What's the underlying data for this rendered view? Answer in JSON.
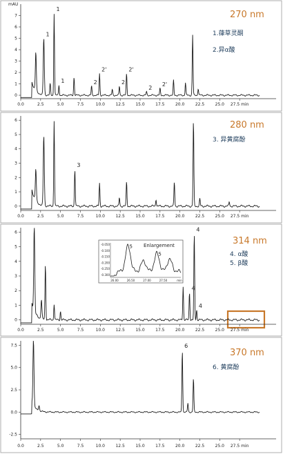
{
  "colors": {
    "trace": "#1a1a1a",
    "wavelength": "#c8782a",
    "legend": "#23415f",
    "highlight_box": "#c8782a"
  },
  "chart_data": [
    {
      "type": "line",
      "unit_label": "mAU",
      "wavelength": "270 nm",
      "legend": [
        "1.葎草灵酮",
        "2.异α酸"
      ],
      "x_ticks": [
        "0.0",
        "2.5",
        "5.0",
        "7.5",
        "10.0",
        "12.5",
        "15.0",
        "17.5",
        "20.0",
        "22.5",
        "25.0",
        "27.5 min"
      ],
      "y_ticks": [
        "0",
        "1",
        "2",
        "3",
        "4",
        "5",
        "6",
        "7"
      ],
      "xlim": [
        0,
        30
      ],
      "ylim": [
        -0.3,
        8
      ],
      "peaks": [
        {
          "x": 1.9,
          "y": 3.4
        },
        {
          "x": 2.9,
          "y": 5.0,
          "label": "1"
        },
        {
          "x": 3.7,
          "y": 1.0
        },
        {
          "x": 4.2,
          "y": 7.2,
          "label": "1"
        },
        {
          "x": 4.8,
          "y": 0.9,
          "label": "1"
        },
        {
          "x": 6.7,
          "y": 1.6
        },
        {
          "x": 8.9,
          "y": 0.8,
          "label": "2"
        },
        {
          "x": 9.9,
          "y": 1.9,
          "label": "2'"
        },
        {
          "x": 11.5,
          "y": 0.5
        },
        {
          "x": 12.4,
          "y": 0.8,
          "label": "2"
        },
        {
          "x": 13.3,
          "y": 1.9,
          "label": "2'"
        },
        {
          "x": 15.8,
          "y": 0.3,
          "label": "2"
        },
        {
          "x": 17.5,
          "y": 0.6,
          "label": "2'"
        },
        {
          "x": 19.2,
          "y": 1.3
        },
        {
          "x": 20.7,
          "y": 1.1
        },
        {
          "x": 21.6,
          "y": 5.3
        },
        {
          "x": 22.3,
          "y": 0.6
        }
      ]
    },
    {
      "type": "line",
      "wavelength": "280 nm",
      "legend": [
        "3. 异黄腐酚"
      ],
      "x_ticks": [
        "0.0",
        "2.5",
        "5.0",
        "7.5",
        "10.0",
        "12.5",
        "15.0",
        "17.5",
        "20.0",
        "22.5",
        "25.0",
        "27.5 min"
      ],
      "y_ticks": [
        "0",
        "1",
        "2",
        "3",
        "4",
        "5",
        "6"
      ],
      "xlim": [
        0,
        30
      ],
      "ylim": [
        -0.3,
        6.3
      ],
      "peaks": [
        {
          "x": 1.9,
          "y": 2.2
        },
        {
          "x": 2.9,
          "y": 4.9
        },
        {
          "x": 4.2,
          "y": 6.0
        },
        {
          "x": 6.8,
          "y": 2.6,
          "label": "3"
        },
        {
          "x": 9.9,
          "y": 1.6
        },
        {
          "x": 12.4,
          "y": 0.6
        },
        {
          "x": 13.3,
          "y": 1.7
        },
        {
          "x": 17.0,
          "y": 0.5
        },
        {
          "x": 19.3,
          "y": 1.7
        },
        {
          "x": 21.7,
          "y": 6.0
        },
        {
          "x": 22.5,
          "y": 0.5
        },
        {
          "x": 26.2,
          "y": 0.3
        }
      ]
    },
    {
      "type": "line",
      "wavelength": "314 nm",
      "legend": [
        "4. α酸",
        "5. β酸"
      ],
      "x_ticks": [
        "0.0",
        "2.5",
        "5.0",
        "7.5",
        "10.0",
        "12.5",
        "15.0",
        "17.5",
        "20.0",
        "22.5",
        "25.0",
        "27.5 min"
      ],
      "y_ticks": [
        "0",
        "1",
        "2",
        "3",
        "4",
        "5",
        "6"
      ],
      "xlim": [
        0,
        30
      ],
      "ylim": [
        -0.3,
        6.3
      ],
      "peaks": [
        {
          "x": 1.7,
          "y": 5.8
        },
        {
          "x": 2.6,
          "y": 1.3
        },
        {
          "x": 3.1,
          "y": 3.8
        },
        {
          "x": 4.2,
          "y": 1.1
        },
        {
          "x": 5.0,
          "y": 0.6
        },
        {
          "x": 20.4,
          "y": 2.3
        },
        {
          "x": 21.2,
          "y": 1.9,
          "label": "4"
        },
        {
          "x": 21.8,
          "y": 5.9,
          "label": "4"
        },
        {
          "x": 22.1,
          "y": 0.7,
          "label": "4"
        }
      ],
      "inset": {
        "title": "Enlargement",
        "y_ticks": [
          "-0.050",
          "-0.100",
          "-0.150",
          "-0.200",
          "-0.250",
          "-0.300"
        ],
        "x_ticks": [
          "26.00",
          "26.50",
          "27.00",
          "27.50",
          "min"
        ],
        "peaks": [
          {
            "x": 0.25,
            "y": 0.85,
            "label": "5"
          },
          {
            "x": 0.47,
            "y": 0.35
          },
          {
            "x": 0.66,
            "y": 0.6,
            "label": "5"
          },
          {
            "x": 0.84,
            "y": 0.4
          }
        ]
      }
    },
    {
      "type": "line",
      "wavelength": "370 nm",
      "legend": [
        "6. 黄腐酚"
      ],
      "x_ticks": [
        "0.0",
        "2.5",
        "5.0",
        "7.5",
        "10.0",
        "12.5",
        "15.0",
        "17.5",
        "20.0",
        "22.5",
        "25.0",
        "27.5 min"
      ],
      "y_ticks": [
        "-2.5",
        "0.0",
        "2.5",
        "5.0",
        "7.5"
      ],
      "xlim": [
        0,
        30
      ],
      "ylim": [
        -3.0,
        8.0
      ],
      "peaks": [
        {
          "x": 1.6,
          "y": 7.5
        },
        {
          "x": 2.3,
          "y": 0.6
        },
        {
          "x": 20.3,
          "y": 7.0,
          "label": "6"
        },
        {
          "x": 21.0,
          "y": 1.0
        },
        {
          "x": 21.7,
          "y": 3.8
        }
      ]
    }
  ]
}
